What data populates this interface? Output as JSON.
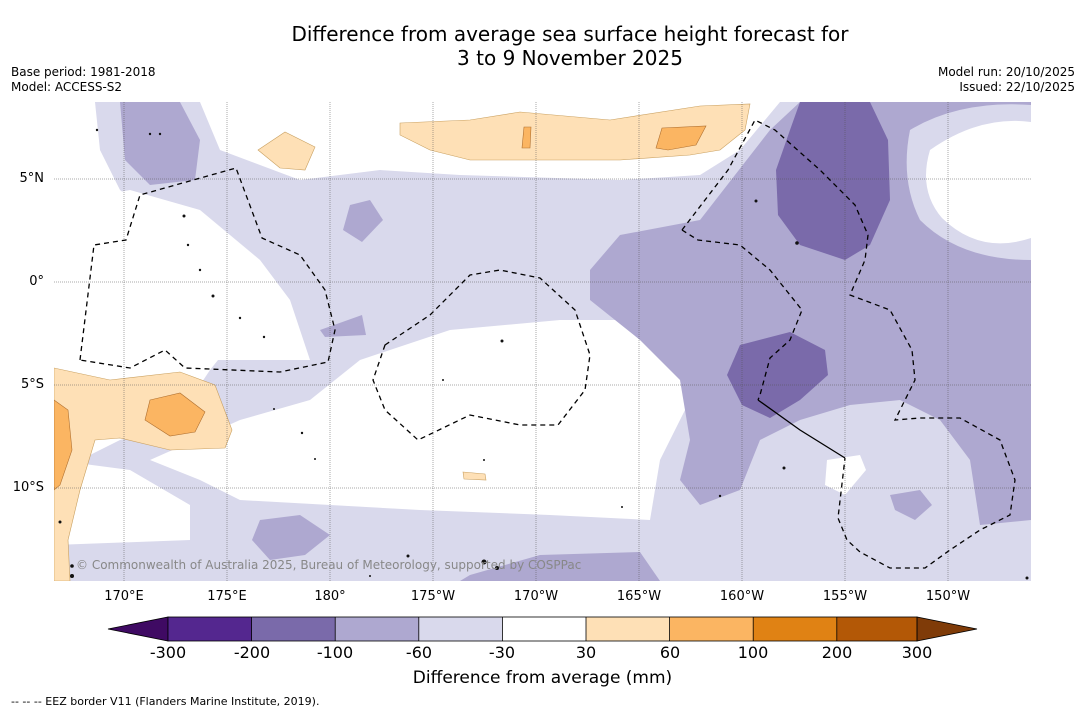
{
  "header": {
    "title_line1": "Difference from average sea surface height forecast for",
    "title_line2": "3 to 9 November 2025",
    "base_period": "Base period: 1981-2018",
    "model": "Model: ACCESS-S2",
    "model_run": "Model run: 20/10/2025",
    "issued": "Issued: 22/10/2025"
  },
  "map": {
    "longitude_labels": [
      "170°E",
      "175°E",
      "180°",
      "175°W",
      "170°W",
      "165°W",
      "160°W",
      "155°W",
      "150°W"
    ],
    "latitude_labels": [
      "5°N",
      "0°",
      "5°S",
      "10°S"
    ],
    "copyright": "© Commonwealth of Australia 2025, Bureau of Meteorology, supported by COSPPac"
  },
  "colorbar": {
    "ticks": [
      "-300",
      "-200",
      "-100",
      "-60",
      "-30",
      "30",
      "60",
      "100",
      "200",
      "300"
    ],
    "colors": [
      "#3f0a63",
      "#54278f",
      "#7a6aaa",
      "#aea8d0",
      "#d9d9ec",
      "#ffffff",
      "#fee0b6",
      "#fbb562",
      "#e08214",
      "#b35806",
      "#7f3b08"
    ],
    "label": "Difference from average (mm)"
  },
  "footer": {
    "legend": "--  --  -- EEZ border V11 (Flanders Marine Institute, 2019)."
  }
}
